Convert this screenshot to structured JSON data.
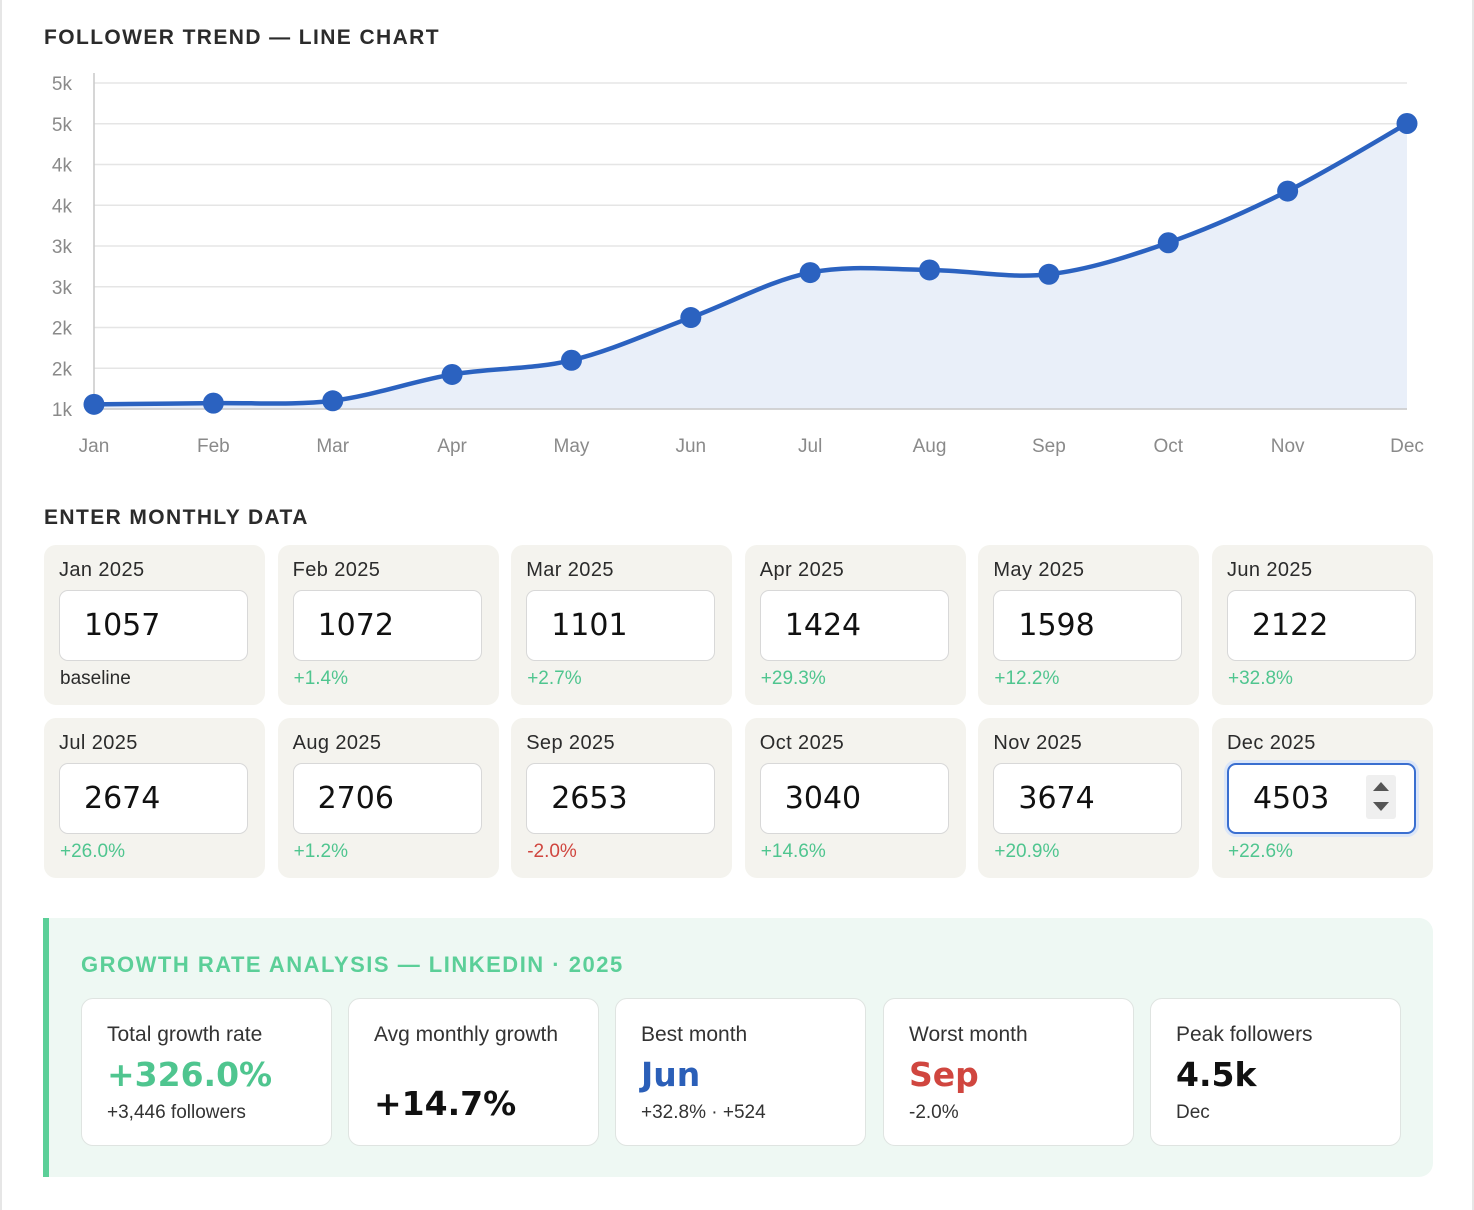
{
  "chart": {
    "title": "FOLLOWER TREND — LINE CHART"
  },
  "chart_data": {
    "type": "line",
    "title": "FOLLOWER TREND — LINE CHART",
    "categories": [
      "Jan",
      "Feb",
      "Mar",
      "Apr",
      "May",
      "Jun",
      "Jul",
      "Aug",
      "Sep",
      "Oct",
      "Nov",
      "Dec"
    ],
    "series": [
      {
        "values": [
          1057,
          1072,
          1101,
          1424,
          1598,
          2122,
          2674,
          2706,
          2653,
          3040,
          3674,
          4503
        ]
      }
    ],
    "y_tick_labels": [
      "1k",
      "2k",
      "2k",
      "3k",
      "3k",
      "4k",
      "4k",
      "5k",
      "5k"
    ],
    "ylim": [
      1000,
      5000
    ],
    "grid": true,
    "area_fill": true,
    "colors": {
      "line": "#2b62c0",
      "area": "#e9eff9",
      "grid": "#e5e5e5",
      "axis": "#c9c9c9"
    }
  },
  "entry": {
    "title": "ENTER MONTHLY DATA",
    "months": [
      {
        "label": "Jan 2025",
        "value": "1057",
        "change": "baseline",
        "kind": "base"
      },
      {
        "label": "Feb 2025",
        "value": "1072",
        "change": "+1.4%",
        "kind": "pos"
      },
      {
        "label": "Mar 2025",
        "value": "1101",
        "change": "+2.7%",
        "kind": "pos"
      },
      {
        "label": "Apr 2025",
        "value": "1424",
        "change": "+29.3%",
        "kind": "pos"
      },
      {
        "label": "May 2025",
        "value": "1598",
        "change": "+12.2%",
        "kind": "pos"
      },
      {
        "label": "Jun 2025",
        "value": "2122",
        "change": "+32.8%",
        "kind": "pos"
      },
      {
        "label": "Jul 2025",
        "value": "2674",
        "change": "+26.0%",
        "kind": "pos"
      },
      {
        "label": "Aug 2025",
        "value": "2706",
        "change": "+1.2%",
        "kind": "pos"
      },
      {
        "label": "Sep 2025",
        "value": "2653",
        "change": "-2.0%",
        "kind": "neg"
      },
      {
        "label": "Oct 2025",
        "value": "3040",
        "change": "+14.6%",
        "kind": "pos"
      },
      {
        "label": "Nov 2025",
        "value": "3674",
        "change": "+20.9%",
        "kind": "pos"
      },
      {
        "label": "Dec 2025",
        "value": "4503",
        "change": "+22.6%",
        "kind": "pos",
        "active": true
      }
    ]
  },
  "analysis": {
    "title": "GROWTH RATE ANALYSIS — LINKEDIN · 2025",
    "total": {
      "label": "Total growth rate",
      "value": "+326.0%",
      "sub": "+3,446 followers"
    },
    "avg": {
      "label": "Avg monthly growth",
      "value": "+14.7%"
    },
    "best": {
      "label": "Best month",
      "value": "Jun",
      "sub": "+32.8% · +524"
    },
    "worst": {
      "label": "Worst month",
      "value": "Sep",
      "sub": "-2.0%"
    },
    "peak": {
      "label": "Peak followers",
      "value": "4.5k",
      "sub": "Dec"
    }
  }
}
